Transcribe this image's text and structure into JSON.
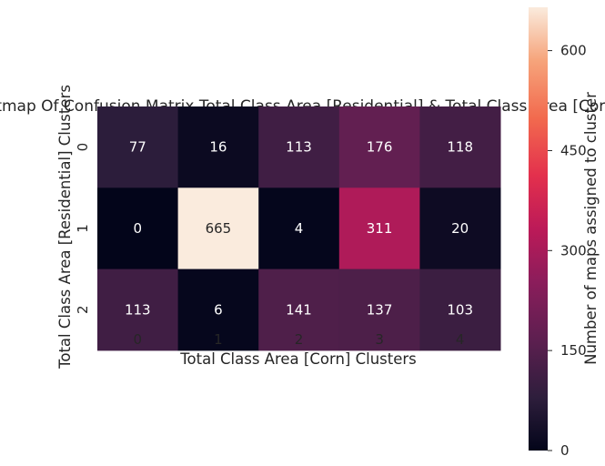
{
  "chart_data": {
    "type": "heatmap",
    "title": "Heatmap Of Confusion Matrix Total Class Area [Residential] & Total Class Area [Corn]",
    "xlabel": "Total Class Area [Corn] Clusters",
    "ylabel": "Total Class Area [Residential] Clusters",
    "x_categories": [
      "0",
      "1",
      "2",
      "3",
      "4"
    ],
    "y_categories": [
      "0",
      "1",
      "2"
    ],
    "values": [
      [
        77,
        16,
        113,
        176,
        118
      ],
      [
        0,
        665,
        4,
        311,
        20
      ],
      [
        113,
        6,
        141,
        137,
        103
      ]
    ],
    "colorbar": {
      "label": "Number of maps assigned to cluster",
      "range": [
        0,
        665
      ],
      "ticks": [
        "0",
        "150",
        "300",
        "450",
        "600"
      ],
      "colormap": "rocket"
    },
    "grid": false
  }
}
